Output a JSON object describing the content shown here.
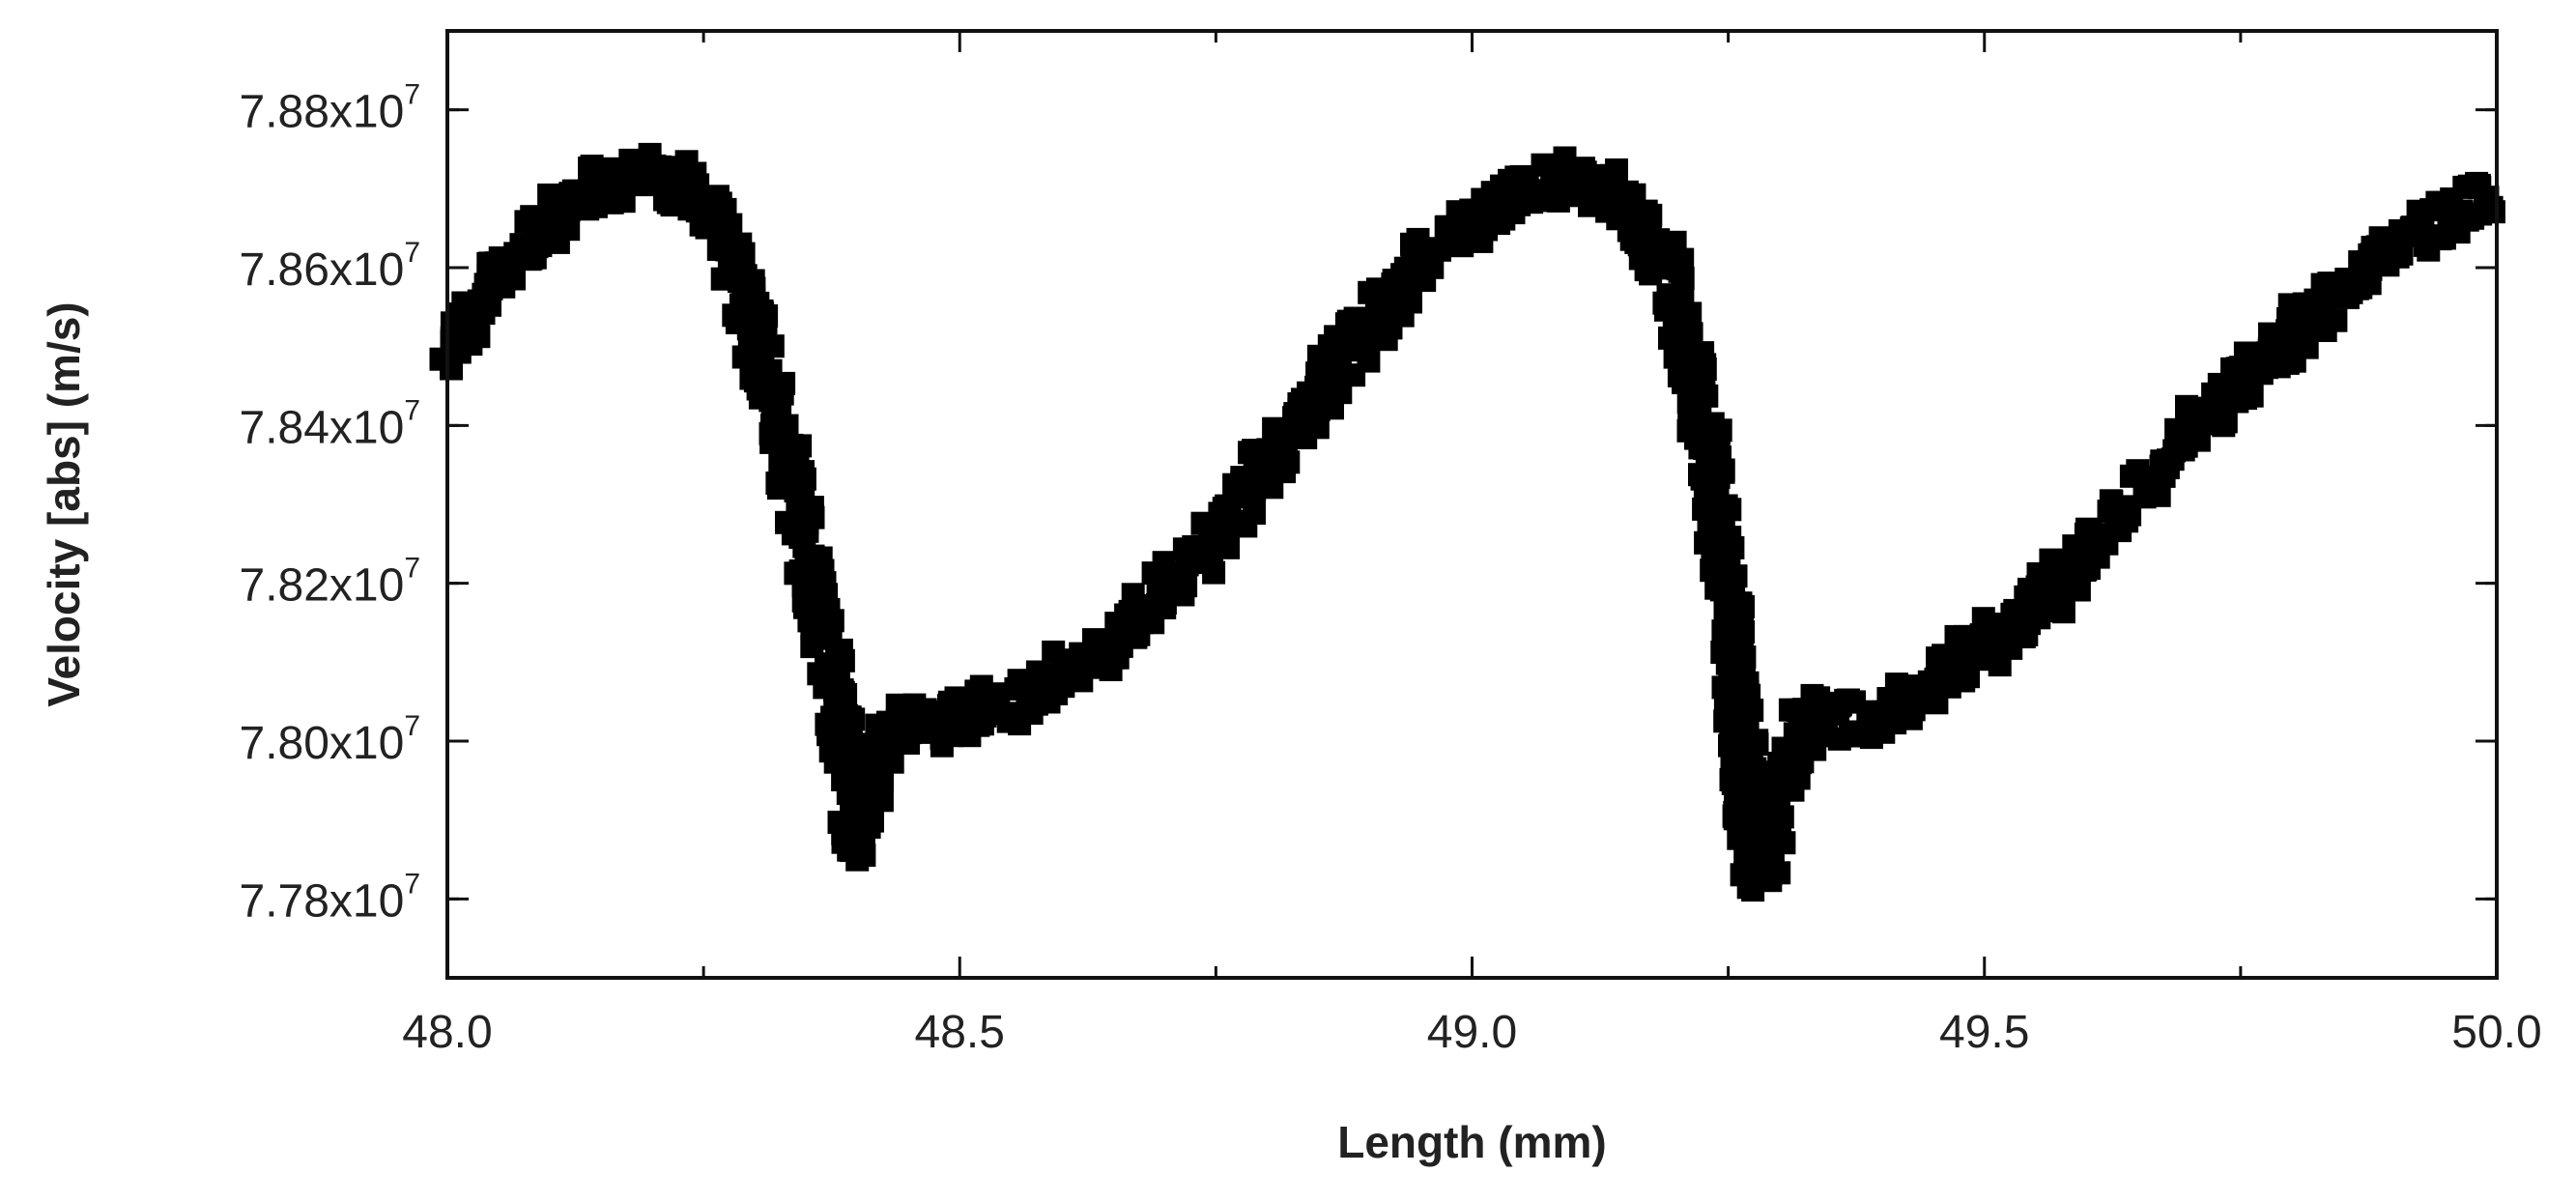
{
  "chart_data": {
    "type": "scatter",
    "title": "",
    "xlabel": "Length (mm)",
    "ylabel": "Velocity [abs] (m/s)",
    "xlim": [
      48.0,
      50.0
    ],
    "ylim": [
      77700000,
      78900000
    ],
    "x_major_ticks": [
      48.0,
      48.5,
      49.0,
      49.5,
      50.0
    ],
    "x_tick_labels": [
      "48.0",
      "48.5",
      "49.0",
      "49.5",
      "50.0"
    ],
    "y_major_ticks": [
      77800000,
      78000000,
      78200000,
      78400000,
      78600000,
      78800000
    ],
    "y_tick_labels": [
      {
        "mantissa": "7.78x10",
        "exp": "7"
      },
      {
        "mantissa": "7.80x10",
        "exp": "7"
      },
      {
        "mantissa": "7.82x10",
        "exp": "7"
      },
      {
        "mantissa": "7.84x10",
        "exp": "7"
      },
      {
        "mantissa": "7.86x10",
        "exp": "7"
      },
      {
        "mantissa": "7.88x10",
        "exp": "7"
      }
    ],
    "grid": false,
    "legend": "none",
    "marker": "square",
    "marker_color": "#000000",
    "series": [
      {
        "values": [
          [
            48.0,
            78500000
          ],
          [
            48.05,
            78590000
          ],
          [
            48.1,
            78660000
          ],
          [
            48.15,
            78705000
          ],
          [
            48.2,
            78720000
          ],
          [
            48.25,
            78690000
          ],
          [
            48.28,
            78620000
          ],
          [
            48.3,
            78520000
          ],
          [
            48.33,
            78360000
          ],
          [
            48.36,
            78180000
          ],
          [
            48.39,
            77960000
          ],
          [
            48.4,
            77860000
          ],
          [
            48.42,
            77960000
          ],
          [
            48.44,
            78020000
          ],
          [
            48.48,
            78020000
          ],
          [
            48.55,
            78050000
          ],
          [
            48.65,
            78120000
          ],
          [
            48.75,
            78260000
          ],
          [
            48.85,
            78440000
          ],
          [
            48.95,
            78610000
          ],
          [
            49.05,
            78700000
          ],
          [
            49.1,
            78715000
          ],
          [
            49.15,
            78680000
          ],
          [
            49.19,
            78600000
          ],
          [
            49.22,
            78450000
          ],
          [
            49.25,
            78200000
          ],
          [
            49.27,
            77900000
          ],
          [
            49.28,
            77810000
          ],
          [
            49.3,
            77950000
          ],
          [
            49.33,
            78030000
          ],
          [
            49.38,
            78030000
          ],
          [
            49.45,
            78070000
          ],
          [
            49.55,
            78170000
          ],
          [
            49.65,
            78320000
          ],
          [
            49.75,
            78460000
          ],
          [
            49.85,
            78580000
          ],
          [
            49.95,
            78670000
          ],
          [
            50.0,
            78700000
          ]
        ]
      }
    ]
  }
}
